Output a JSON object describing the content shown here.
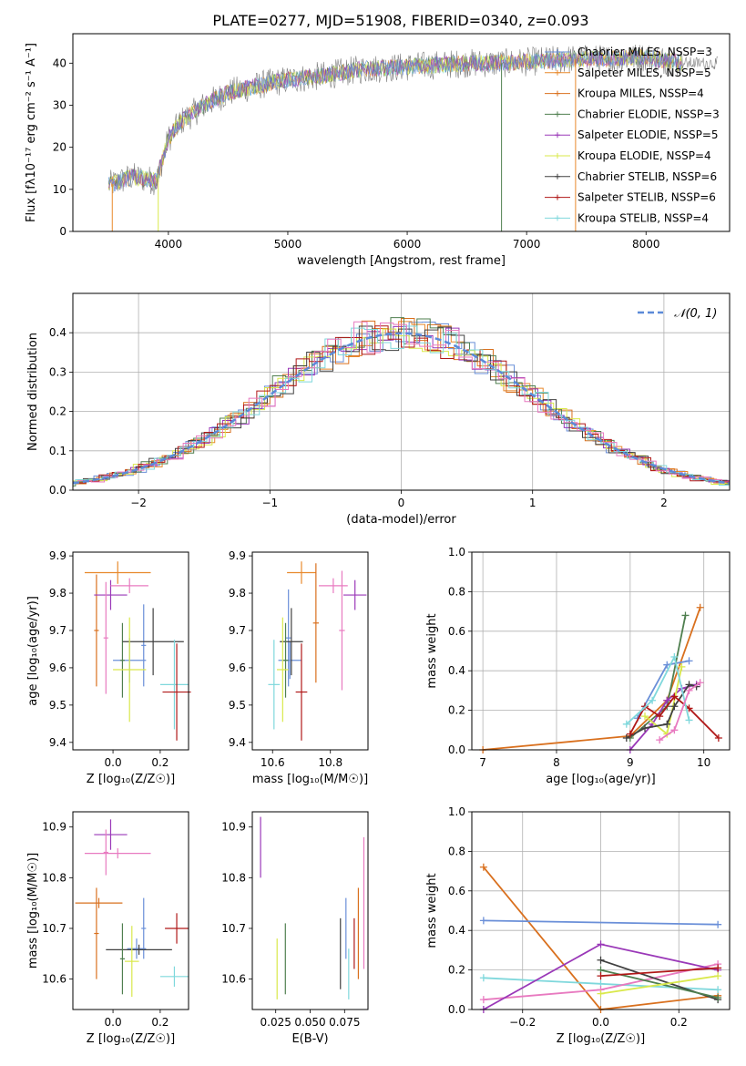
{
  "title": "PLATE=0277, MJD=51908, FIBERID=0340, z=0.093",
  "colors": {
    "Chabrier MILES": "#6a8fd8",
    "Salpeter MILES": "#e8892c",
    "Kroupa MILES": "#d9701e",
    "Chabrier ELODIE": "#4f7f4f",
    "Salpeter ELODIE": "#9a38b8",
    "Kroupa ELODIE": "#d9e84a",
    "Chabrier STELIB": "#404040",
    "Salpeter STELIB": "#b01818",
    "Kroupa STELIB": "#7fd8dc",
    "pink": "#e87ac0"
  },
  "chart_data": [
    {
      "id": "spectrum",
      "type": "line",
      "xlabel": "wavelength [Angstrom, rest frame]",
      "ylabel": "Flux [fλ10⁻¹⁷ erg cm⁻² s⁻¹ A⁻¹]",
      "xlim": [
        3200,
        8700
      ],
      "ylim": [
        0,
        47
      ],
      "xticks": [
        4000,
        5000,
        6000,
        7000,
        8000
      ],
      "yticks": [
        0,
        10,
        20,
        30,
        40
      ],
      "legend": [
        "Chabrier MILES, N_SSP=3",
        "Salpeter MILES, N_SSP=5",
        "Kroupa MILES, N_SSP=4",
        "Chabrier ELODIE, N_SSP=3",
        "Salpeter ELODIE, N_SSP=5",
        "Kroupa ELODIE, N_SSP=4",
        "Chabrier STELIB, N_SSP=6",
        "Salpeter STELIB, N_SSP=6",
        "Kroupa STELIB, N_SSP=4"
      ],
      "legend_loc": "upper right",
      "continuum_x": [
        3500,
        3700,
        3900,
        4000,
        4100,
        4300,
        4500,
        4800,
        5000,
        5300,
        5600,
        5900,
        6200,
        6500,
        6800,
        7100,
        7400,
        7700,
        8000,
        8300
      ],
      "continuum_y": [
        11,
        13,
        12,
        22,
        26,
        30,
        33,
        35,
        36,
        37,
        38.5,
        39,
        39.5,
        40,
        40,
        40.5,
        41,
        41,
        41.5,
        40
      ]
    },
    {
      "id": "residuals",
      "type": "line",
      "xlabel": "(data-model)/error",
      "ylabel": "Normed distribution",
      "xlim": [
        -2.5,
        2.5
      ],
      "ylim": [
        0,
        0.5
      ],
      "xticks": [
        -2,
        -1,
        0,
        1,
        2
      ],
      "xticklabels": [
        "−2",
        "−1",
        "0",
        "1",
        "2"
      ],
      "yticks": [
        0,
        0.1,
        0.2,
        0.3,
        0.4
      ],
      "yticklabels": [
        "0.0",
        "0.1",
        "0.2",
        "0.3",
        "0.4"
      ],
      "grid": true,
      "legend": [
        "𝒩(0, 1)"
      ],
      "legend_loc": "upper right"
    },
    {
      "id": "age_vs_Z",
      "type": "scatter",
      "xlabel": "Z [log₁₀(Z/Z☉)]",
      "ylabel": "age [log₁₀(age/yr)]",
      "xlim": [
        -0.17,
        0.32
      ],
      "ylim": [
        9.38,
        9.91
      ],
      "xticks": [
        0.0,
        0.2
      ],
      "xticklabels": [
        "0.0",
        "0.2"
      ],
      "yticks": [
        9.4,
        9.5,
        9.6,
        9.7,
        9.8,
        9.9
      ],
      "yticklabels": [
        "9.4",
        "9.5",
        "9.6",
        "9.7",
        "9.8",
        "9.9"
      ],
      "points": [
        {
          "model": "Salpeter MILES",
          "x": 0.02,
          "y": 9.855,
          "xerr": 0.14,
          "yerr": 0.03
        },
        {
          "model": "Kroupa MILES",
          "x": -0.07,
          "y": 9.7,
          "xerr": 0.01,
          "yerr": 0.15
        },
        {
          "model": "Salpeter ELODIE",
          "x": -0.01,
          "y": 9.795,
          "xerr": 0.07,
          "yerr": 0.04
        },
        {
          "model": "pink",
          "x": 0.07,
          "y": 9.82,
          "xerr": 0.08,
          "yerr": 0.02
        },
        {
          "model": "pink",
          "x": -0.03,
          "y": 9.68,
          "xerr": 0.01,
          "yerr": 0.15
        },
        {
          "model": "Chabrier MILES",
          "x": 0.07,
          "y": 9.62,
          "xerr": 0.07,
          "yerr": 0.06
        },
        {
          "model": "Chabrier MILES",
          "x": 0.13,
          "y": 9.66,
          "xerr": 0.01,
          "yerr": 0.11
        },
        {
          "model": "Chabrier ELODIE",
          "x": 0.04,
          "y": 9.62,
          "xerr": 0.01,
          "yerr": 0.1
        },
        {
          "model": "Chabrier STELIB",
          "x": 0.17,
          "y": 9.67,
          "xerr": 0.13,
          "yerr": 0.09
        },
        {
          "model": "Kroupa ELODIE",
          "x": 0.07,
          "y": 9.595,
          "xerr": 0.07,
          "yerr": 0.14
        },
        {
          "model": "Kroupa STELIB",
          "x": 0.26,
          "y": 9.555,
          "xerr": 0.06,
          "yerr": 0.12
        },
        {
          "model": "Salpeter STELIB",
          "x": 0.27,
          "y": 9.535,
          "xerr": 0.06,
          "yerr": 0.13
        }
      ]
    },
    {
      "id": "age_vs_mass",
      "type": "scatter",
      "xlabel": "mass [log₁₀(M/M☉)]",
      "ylabel": "",
      "xlim": [
        10.53,
        10.93
      ],
      "ylim": [
        9.38,
        9.91
      ],
      "xticks": [
        10.6,
        10.8
      ],
      "xticklabels": [
        "10.6",
        "10.8"
      ],
      "yticks": [
        9.4,
        9.5,
        9.6,
        9.7,
        9.8,
        9.9
      ],
      "yticklabels": [
        "9.4",
        "9.5",
        "9.6",
        "9.7",
        "9.8",
        "9.9"
      ],
      "points": [
        {
          "model": "Salpeter MILES",
          "x": 10.7,
          "y": 9.855,
          "xerr": 0.05,
          "yerr": 0.03
        },
        {
          "model": "Kroupa MILES",
          "x": 10.75,
          "y": 9.72,
          "xerr": 0.01,
          "yerr": 0.16
        },
        {
          "model": "pink",
          "x": 10.81,
          "y": 9.82,
          "xerr": 0.05,
          "yerr": 0.02
        },
        {
          "model": "pink",
          "x": 10.84,
          "y": 9.7,
          "xerr": 0.01,
          "yerr": 0.16
        },
        {
          "model": "Salpeter ELODIE",
          "x": 10.885,
          "y": 9.795,
          "xerr": 0.04,
          "yerr": 0.04
        },
        {
          "model": "Chabrier MILES",
          "x": 10.66,
          "y": 9.62,
          "xerr": 0.04,
          "yerr": 0.05
        },
        {
          "model": "Chabrier MILES",
          "x": 10.655,
          "y": 9.68,
          "xerr": 0.01,
          "yerr": 0.13
        },
        {
          "model": "Chabrier STELIB",
          "x": 10.665,
          "y": 9.67,
          "xerr": 0.04,
          "yerr": 0.09
        },
        {
          "model": "Chabrier ELODIE",
          "x": 10.645,
          "y": 9.62,
          "xerr": 0.01,
          "yerr": 0.1
        },
        {
          "model": "Kroupa ELODIE",
          "x": 10.635,
          "y": 9.595,
          "xerr": 0.02,
          "yerr": 0.14
        },
        {
          "model": "Kroupa STELIB",
          "x": 10.605,
          "y": 9.555,
          "xerr": 0.02,
          "yerr": 0.12
        },
        {
          "model": "Salpeter STELIB",
          "x": 10.7,
          "y": 9.535,
          "xerr": 0.02,
          "yerr": 0.13
        }
      ]
    },
    {
      "id": "massweight_vs_age",
      "type": "line",
      "xlabel": "age [log₁₀(age/yr)]",
      "ylabel": "mass weight",
      "xlim": [
        6.85,
        10.35
      ],
      "ylim": [
        0,
        1
      ],
      "xticks": [
        7,
        8,
        9,
        10
      ],
      "xticklabels": [
        "7",
        "8",
        "9",
        "10"
      ],
      "yticks": [
        0,
        0.2,
        0.4,
        0.6,
        0.8,
        1.0
      ],
      "yticklabels": [
        "0.0",
        "0.2",
        "0.4",
        "0.6",
        "0.8",
        "1.0"
      ],
      "grid": true,
      "series": [
        {
          "model": "Kroupa MILES",
          "x": [
            7.0,
            9.0,
            9.5,
            9.95
          ],
          "y": [
            0.0,
            0.07,
            0.25,
            0.72
          ]
        },
        {
          "model": "Chabrier MILES",
          "x": [
            9.1,
            9.5,
            9.8
          ],
          "y": [
            0.16,
            0.43,
            0.45
          ]
        },
        {
          "model": "Chabrier ELODIE",
          "x": [
            9.0,
            9.5,
            9.75
          ],
          "y": [
            0.06,
            0.22,
            0.68
          ]
        },
        {
          "model": "Salpeter ELODIE",
          "x": [
            9.0,
            9.3,
            9.5,
            9.7,
            9.9
          ],
          "y": [
            0.0,
            0.13,
            0.25,
            0.31,
            0.33
          ]
        },
        {
          "model": "Kroupa ELODIE",
          "x": [
            9.2,
            9.5,
            9.7
          ],
          "y": [
            0.17,
            0.08,
            0.42
          ]
        },
        {
          "model": "Chabrier STELIB",
          "x": [
            8.95,
            9.2,
            9.5,
            9.6,
            9.8,
            9.9
          ],
          "y": [
            0.06,
            0.11,
            0.13,
            0.22,
            0.33,
            0.32
          ]
        },
        {
          "model": "Salpeter STELIB",
          "x": [
            9.0,
            9.2,
            9.4,
            9.6,
            9.8,
            10.2
          ],
          "y": [
            0.08,
            0.22,
            0.17,
            0.27,
            0.21,
            0.06
          ]
        },
        {
          "model": "Kroupa STELIB",
          "x": [
            8.95,
            9.3,
            9.6,
            9.8
          ],
          "y": [
            0.13,
            0.25,
            0.47,
            0.15
          ]
        },
        {
          "model": "pink",
          "x": [
            9.4,
            9.6,
            9.8,
            9.95
          ],
          "y": [
            0.05,
            0.1,
            0.3,
            0.34
          ]
        }
      ]
    },
    {
      "id": "mass_vs_Z",
      "type": "scatter",
      "xlabel": "Z [log₁₀(Z/Z☉)]",
      "ylabel": "mass [log₁₀(M/M☉)]",
      "xlim": [
        -0.17,
        0.32
      ],
      "ylim": [
        10.54,
        10.93
      ],
      "xticks": [
        0.0,
        0.2
      ],
      "xticklabels": [
        "0.0",
        "0.2"
      ],
      "yticks": [
        10.6,
        10.7,
        10.8,
        10.9
      ],
      "yticklabels": [
        "10.6",
        "10.7",
        "10.8",
        "10.9"
      ],
      "points": [
        {
          "model": "Salpeter ELODIE",
          "x": -0.01,
          "y": 10.885,
          "xerr": 0.07,
          "yerr": 0.03
        },
        {
          "model": "pink",
          "x": 0.02,
          "y": 10.848,
          "xerr": 0.14,
          "yerr": 0.01
        },
        {
          "model": "pink",
          "x": -0.03,
          "y": 10.85,
          "xerr": 0.01,
          "yerr": 0.045
        },
        {
          "model": "Kroupa MILES",
          "x": -0.06,
          "y": 10.75,
          "xerr": 0.1,
          "yerr": 0.01
        },
        {
          "model": "Kroupa MILES",
          "x": -0.07,
          "y": 10.69,
          "xerr": 0.01,
          "yerr": 0.09
        },
        {
          "model": "Chabrier MILES",
          "x": 0.1,
          "y": 10.66,
          "xerr": 0.04,
          "yerr": 0.02
        },
        {
          "model": "Chabrier MILES",
          "x": 0.13,
          "y": 10.7,
          "xerr": 0.01,
          "yerr": 0.06
        },
        {
          "model": "Chabrier STELIB",
          "x": 0.11,
          "y": 10.658,
          "xerr": 0.14,
          "yerr": 0.01
        },
        {
          "model": "Chabrier ELODIE",
          "x": 0.04,
          "y": 10.64,
          "xerr": 0.01,
          "yerr": 0.07
        },
        {
          "model": "Kroupa ELODIE",
          "x": 0.08,
          "y": 10.635,
          "xerr": 0.03,
          "yerr": 0.07
        },
        {
          "model": "Salpeter STELIB",
          "x": 0.27,
          "y": 10.7,
          "xerr": 0.05,
          "yerr": 0.03
        },
        {
          "model": "Kroupa STELIB",
          "x": 0.26,
          "y": 10.605,
          "xerr": 0.06,
          "yerr": 0.02
        }
      ]
    },
    {
      "id": "mass_vs_ebv",
      "type": "scatter",
      "xlabel": "E(B-V)",
      "ylabel": "",
      "xlim": [
        0.008,
        0.092
      ],
      "ylim": [
        10.54,
        10.93
      ],
      "xticks": [
        0.025,
        0.05,
        0.075
      ],
      "xticklabels": [
        "0.025",
        "0.050",
        "0.075"
      ],
      "yticks": [
        10.6,
        10.7,
        10.8,
        10.9
      ],
      "yticklabels": [
        "10.6",
        "10.7",
        "10.8",
        "10.9"
      ],
      "points": [
        {
          "model": "Salpeter ELODIE",
          "x": 0.014,
          "y": 10.86,
          "xerr": 0,
          "yerr": 0.06
        },
        {
          "model": "Kroupa ELODIE",
          "x": 0.026,
          "y": 10.62,
          "xerr": 0,
          "yerr": 0.06
        },
        {
          "model": "Chabrier ELODIE",
          "x": 0.032,
          "y": 10.64,
          "xerr": 0,
          "yerr": 0.07
        },
        {
          "model": "Chabrier STELIB",
          "x": 0.072,
          "y": 10.65,
          "xerr": 0,
          "yerr": 0.07
        },
        {
          "model": "Chabrier MILES",
          "x": 0.076,
          "y": 10.7,
          "xerr": 0,
          "yerr": 0.06
        },
        {
          "model": "Kroupa STELIB",
          "x": 0.078,
          "y": 10.61,
          "xerr": 0,
          "yerr": 0.05
        },
        {
          "model": "Salpeter STELIB",
          "x": 0.082,
          "y": 10.67,
          "xerr": 0,
          "yerr": 0.05
        },
        {
          "model": "Kroupa MILES",
          "x": 0.085,
          "y": 10.69,
          "xerr": 0,
          "yerr": 0.09
        },
        {
          "model": "pink",
          "x": 0.089,
          "y": 10.75,
          "xerr": 0,
          "yerr": 0.13
        }
      ]
    },
    {
      "id": "massweight_vs_Z",
      "type": "line",
      "xlabel": "Z [log₁₀(Z/Z☉)]",
      "ylabel": "mass weight",
      "xlim": [
        -0.33,
        0.33
      ],
      "ylim": [
        0,
        1
      ],
      "xticks": [
        -0.2,
        0.0,
        0.2
      ],
      "xticklabels": [
        "−0.2",
        "0.0",
        "0.2"
      ],
      "yticks": [
        0,
        0.2,
        0.4,
        0.6,
        0.8,
        1.0
      ],
      "yticklabels": [
        "0.0",
        "0.2",
        "0.4",
        "0.6",
        "0.8",
        "1.0"
      ],
      "grid": true,
      "series": [
        {
          "model": "Kroupa MILES",
          "x": [
            -0.3,
            0.0,
            0.3
          ],
          "y": [
            0.72,
            0.0,
            0.07
          ]
        },
        {
          "model": "Chabrier MILES",
          "x": [
            -0.3,
            0.3
          ],
          "y": [
            0.45,
            0.43
          ]
        },
        {
          "model": "Kroupa STELIB",
          "x": [
            -0.3,
            0.0,
            0.3
          ],
          "y": [
            0.16,
            0.13,
            0.1
          ]
        },
        {
          "model": "pink",
          "x": [
            -0.3,
            0.0,
            0.3
          ],
          "y": [
            0.05,
            0.1,
            0.23
          ]
        },
        {
          "model": "Salpeter ELODIE",
          "x": [
            -0.3,
            0.0,
            0.3
          ],
          "y": [
            0.0,
            0.33,
            0.2
          ]
        },
        {
          "model": "Chabrier STELIB",
          "x": [
            0.0,
            0.3
          ],
          "y": [
            0.25,
            0.05
          ]
        },
        {
          "model": "Chabrier ELODIE",
          "x": [
            0.0,
            0.3
          ],
          "y": [
            0.2,
            0.06
          ]
        },
        {
          "model": "Kroupa ELODIE",
          "x": [
            0.0,
            0.3
          ],
          "y": [
            0.08,
            0.17
          ]
        },
        {
          "model": "Salpeter STELIB",
          "x": [
            0.0,
            0.3
          ],
          "y": [
            0.17,
            0.21
          ]
        }
      ]
    }
  ]
}
